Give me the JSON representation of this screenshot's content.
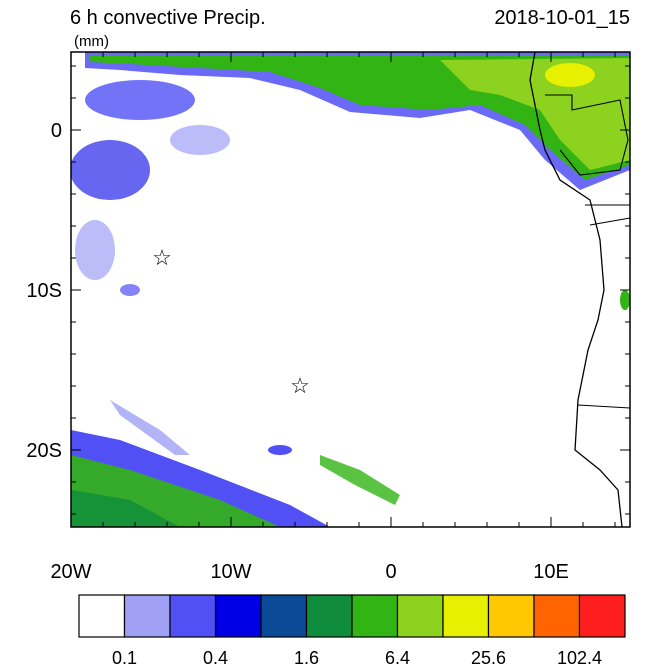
{
  "header": {
    "title": "6 h convective Precip.",
    "units": "(mm)",
    "valid_time": "2018-10-01_15"
  },
  "map": {
    "lat_labels": [
      "0",
      "10S",
      "20S"
    ],
    "lon_labels": [
      "20W",
      "10W",
      "0",
      "10E"
    ]
  },
  "colorbar": {
    "colors": [
      "#ffffff",
      "#a0a0f5",
      "#5050f5",
      "#0000e6",
      "#0a4a96",
      "#0f8c3c",
      "#32b414",
      "#8cd21e",
      "#e6f000",
      "#ffc800",
      "#ff6400",
      "#ff1e1e"
    ],
    "labels": [
      "0.1",
      "0.4",
      "1.6",
      "6.4",
      "25.6",
      "102.4"
    ]
  }
}
